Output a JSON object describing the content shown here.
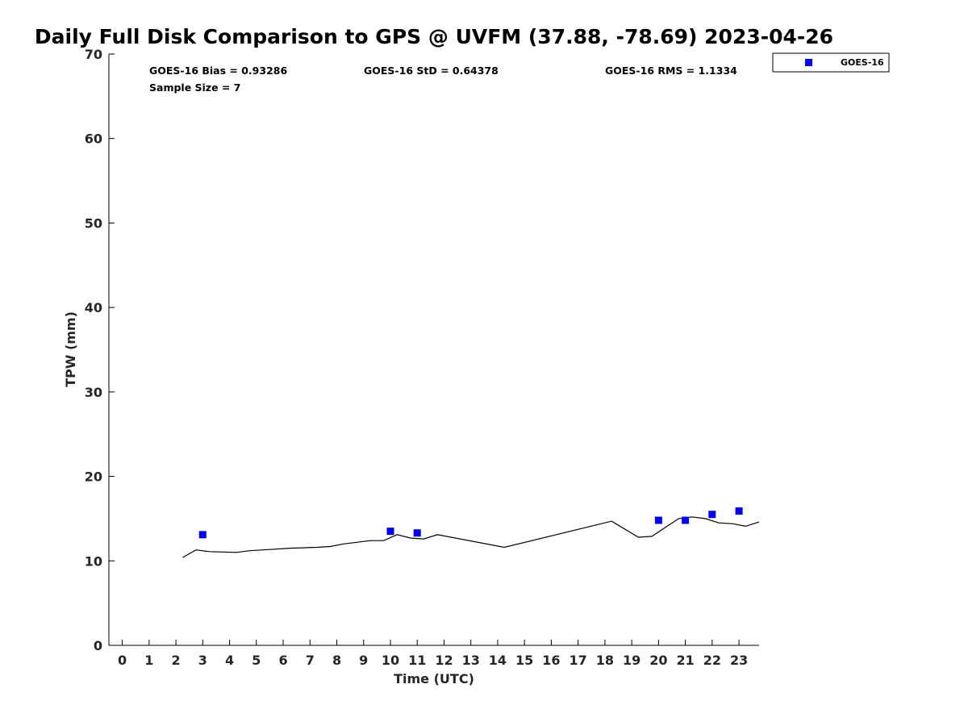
{
  "chart_data": {
    "type": "scatter",
    "title": "Daily Full Disk Comparison to GPS @ UVFM (37.88, -78.69) 2023-04-26",
    "xlabel": "Time (UTC)",
    "ylabel": "TPW (mm)",
    "xlim": [
      -0.5,
      23.75
    ],
    "ylim": [
      0,
      70
    ],
    "x_ticks": [
      0,
      1,
      2,
      3,
      4,
      5,
      6,
      7,
      8,
      9,
      10,
      11,
      12,
      13,
      14,
      15,
      16,
      17,
      18,
      19,
      20,
      21,
      22,
      23
    ],
    "y_ticks": [
      0,
      10,
      20,
      30,
      40,
      50,
      60,
      70
    ],
    "grid": false,
    "legend": {
      "position": "top-right",
      "entries": [
        "GOES-16"
      ]
    },
    "annotations": {
      "bias": "GOES-16 Bias = 0.93286",
      "std": "GOES-16 StD = 0.64378",
      "rms": "GOES-16 RMS = 1.1334",
      "sample": "Sample Size = 7"
    },
    "series": [
      {
        "name": "GOES-16",
        "kind": "scatter",
        "marker": "square",
        "color": "#0000ff",
        "points": [
          [
            3.0,
            13.1
          ],
          [
            10.0,
            13.5
          ],
          [
            11.0,
            13.3
          ],
          [
            20.0,
            14.8
          ],
          [
            21.0,
            14.8
          ],
          [
            22.0,
            15.5
          ],
          [
            23.0,
            15.9
          ]
        ]
      },
      {
        "kind": "line",
        "color": "#000000",
        "points": [
          [
            2.25,
            10.4
          ],
          [
            2.75,
            11.3
          ],
          [
            3.25,
            11.1
          ],
          [
            4.25,
            11.0
          ],
          [
            4.75,
            11.2
          ],
          [
            5.25,
            11.3
          ],
          [
            6.25,
            11.5
          ],
          [
            7.25,
            11.6
          ],
          [
            7.75,
            11.7
          ],
          [
            8.25,
            12.0
          ],
          [
            9.25,
            12.4
          ],
          [
            9.75,
            12.4
          ],
          [
            10.25,
            13.1
          ],
          [
            10.75,
            12.7
          ],
          [
            11.25,
            12.6
          ],
          [
            11.75,
            13.1
          ],
          [
            14.25,
            11.6
          ],
          [
            18.25,
            14.7
          ],
          [
            19.25,
            12.8
          ],
          [
            19.75,
            12.9
          ],
          [
            20.75,
            15.0
          ],
          [
            21.25,
            15.2
          ],
          [
            21.75,
            15.0
          ],
          [
            22.25,
            14.5
          ],
          [
            22.75,
            14.4
          ],
          [
            23.25,
            14.1
          ],
          [
            23.75,
            14.6
          ]
        ]
      }
    ]
  }
}
